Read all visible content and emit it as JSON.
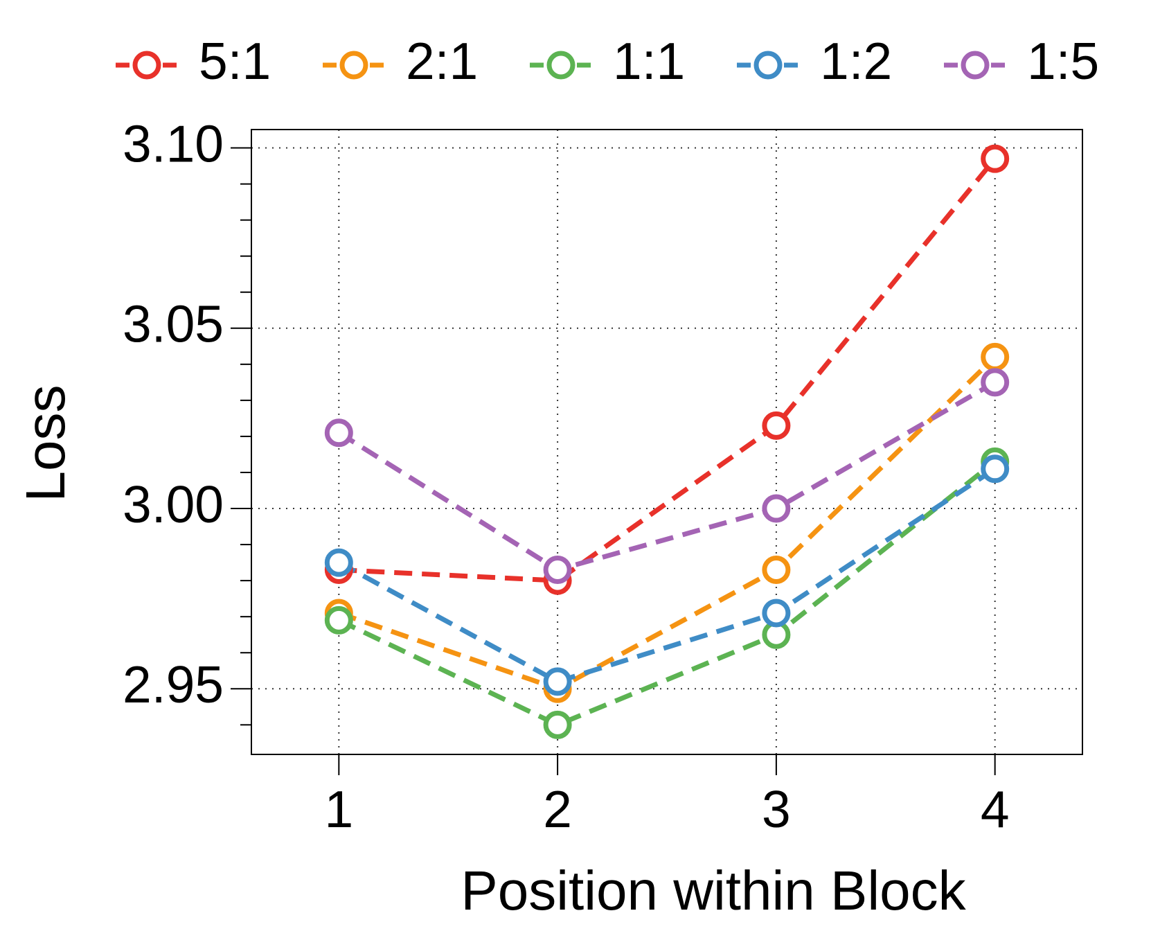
{
  "chart_data": {
    "type": "line",
    "x_label": "Position within Block",
    "y_label": "Loss",
    "x": [
      1,
      2,
      3,
      4
    ],
    "series": [
      {
        "name": "5:1",
        "color": "#e8312a",
        "values": [
          2.983,
          2.98,
          3.023,
          3.097
        ]
      },
      {
        "name": "2:1",
        "color": "#f59312",
        "values": [
          2.971,
          2.95,
          2.983,
          3.042
        ]
      },
      {
        "name": "1:1",
        "color": "#5cb352",
        "values": [
          2.969,
          2.94,
          2.965,
          3.013
        ]
      },
      {
        "name": "1:2",
        "color": "#3f8cc6",
        "values": [
          2.985,
          2.952,
          2.971,
          3.011
        ]
      },
      {
        "name": "1:5",
        "color": "#a464b4",
        "values": [
          3.021,
          2.983,
          3.0,
          3.035
        ]
      }
    ],
    "xlim": [
      0.6,
      4.4
    ],
    "xticks": [
      1,
      2,
      3,
      4
    ],
    "ylim": [
      2.9318,
      3.1051
    ],
    "yticks": [
      2.95,
      {
        "value": 3.0,
        "label": "3.00"
      },
      3.05,
      {
        "value": 3.1,
        "label": "3.10"
      }
    ],
    "yminorticks": [
      2.94,
      2.96,
      2.97,
      2.98,
      2.99,
      3.01,
      3.02,
      3.03,
      3.04,
      3.06,
      3.07,
      3.08,
      3.09
    ],
    "grid": true,
    "legend": "top"
  }
}
